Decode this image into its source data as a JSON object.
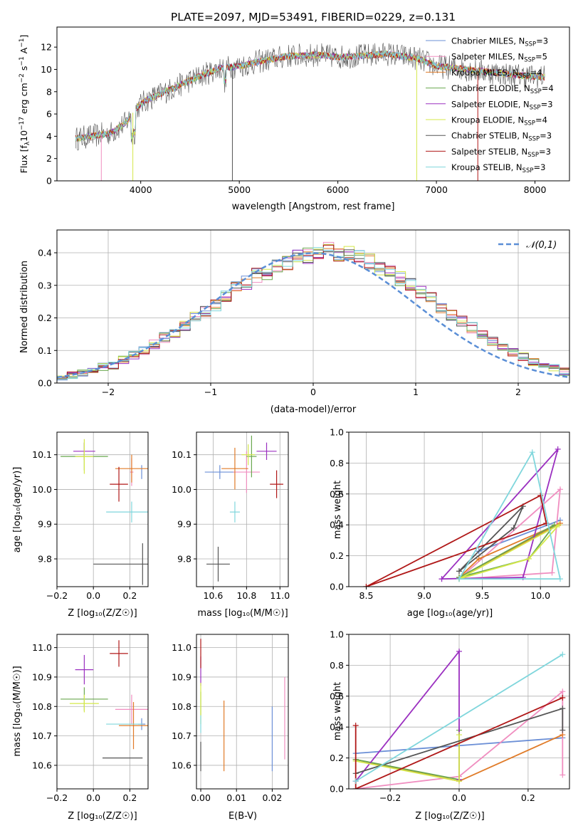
{
  "title": "PLATE=2097, MJD=53491, FIBERID=0229, z=0.131",
  "colors": {
    "Chabrier MILES": "#6b8fd6",
    "Salpeter MILES": "#f08ec0",
    "Kroupa MILES": "#e07b28",
    "Chabrier ELODIE": "#6aa84f",
    "Salpeter ELODIE": "#9b30c0",
    "Kroupa ELODIE": "#d4e84a",
    "Chabrier STELIB": "#555555",
    "Salpeter STELIB": "#b01818",
    "Kroupa STELIB": "#7fd6dc",
    "normal": "#5a8ed6"
  },
  "chart_data": [
    {
      "type": "line",
      "xlabel": "wavelength [Angstrom, rest frame]",
      "ylabel": "Flux [f_λ 10⁻¹⁷ erg cm⁻² s⁻¹ A⁻¹]",
      "xlim": [
        3150,
        8350
      ],
      "ylim": [
        0,
        13.8
      ],
      "xticks": [
        4000,
        5000,
        6000,
        7000,
        8000
      ],
      "yticks": [
        0,
        2,
        4,
        6,
        8,
        10,
        12
      ],
      "legend_loc": "right",
      "legend": [
        "Chabrier MILES, N_SSP=3",
        "Salpeter MILES, N_SSP=5",
        "Kroupa MILES, N_SSP=4",
        "Chabrier ELODIE, N_SSP=4",
        "Salpeter ELODIE, N_SSP=3",
        "Kroupa ELODIE, N_SSP=4",
        "Chabrier STELIB, N_SSP=3",
        "Salpeter STELIB, N_SSP=3",
        "Kroupa STELIB, N_SSP=3"
      ],
      "continuum": [
        [
          3350,
          3.8
        ],
        [
          3500,
          4.0
        ],
        [
          3700,
          4.3
        ],
        [
          3850,
          5.2
        ],
        [
          3950,
          6.5
        ],
        [
          4050,
          7.2
        ],
        [
          4200,
          7.8
        ],
        [
          4400,
          8.6
        ],
        [
          4600,
          9.4
        ],
        [
          4800,
          10.1
        ],
        [
          5000,
          10.3
        ],
        [
          5200,
          10.7
        ],
        [
          5500,
          11.2
        ],
        [
          5800,
          11.3
        ],
        [
          6000,
          11.1
        ],
        [
          6200,
          11.2
        ],
        [
          6500,
          11.4
        ],
        [
          6800,
          11.0
        ],
        [
          7000,
          10.3
        ],
        [
          7200,
          10.1
        ],
        [
          7500,
          9.8
        ],
        [
          7800,
          9.5
        ],
        [
          8100,
          9.3
        ]
      ],
      "spikes_down": [
        {
          "x": 3600,
          "y": 0.0
        },
        {
          "x": 3920,
          "y": 0.0
        },
        {
          "x": 4930,
          "y": 0.0
        },
        {
          "x": 6800,
          "y": 0.0
        },
        {
          "x": 7420,
          "y": 0.0
        }
      ]
    },
    {
      "type": "line",
      "xlabel": "(data-model)/error",
      "ylabel": "Normed distribution",
      "xlim": [
        -2.5,
        2.5
      ],
      "ylim": [
        0,
        0.47
      ],
      "xticks": [
        -2,
        -1,
        0,
        1,
        2
      ],
      "yticks": [
        0.0,
        0.1,
        0.2,
        0.3,
        0.4
      ],
      "legend_loc": "upper right",
      "legend": [
        "𝒩(0,1)"
      ],
      "bin_width": 0.1,
      "bin_start": -2.5,
      "base_hist": [
        0.02,
        0.025,
        0.03,
        0.04,
        0.05,
        0.055,
        0.07,
        0.085,
        0.1,
        0.12,
        0.14,
        0.155,
        0.175,
        0.2,
        0.22,
        0.24,
        0.265,
        0.29,
        0.31,
        0.33,
        0.34,
        0.355,
        0.37,
        0.385,
        0.39,
        0.4,
        0.41,
        0.4,
        0.395,
        0.39,
        0.375,
        0.355,
        0.34,
        0.32,
        0.3,
        0.28,
        0.26,
        0.235,
        0.21,
        0.19,
        0.17,
        0.15,
        0.13,
        0.11,
        0.095,
        0.08,
        0.065,
        0.055,
        0.045,
        0.035,
        0.03
      ]
    },
    {
      "type": "scatter",
      "xlabel": "Z [log₁₀(Z/Z☉)]",
      "ylabel": "age  [log₁₀(age/yr)]",
      "xlim": [
        -0.2,
        0.3
      ],
      "ylim": [
        9.72,
        10.165
      ],
      "xticks": [
        -0.2,
        0.0,
        0.2
      ],
      "yticks": [
        9.8,
        9.9,
        10.0,
        10.1
      ],
      "points": [
        {
          "model": "Chabrier MILES",
          "x": 0.265,
          "y": 10.05,
          "xerr": 0.0,
          "yerr": 0.02
        },
        {
          "model": "Salpeter MILES",
          "x": 0.21,
          "y": 10.05,
          "xerr": 0.01,
          "yerr": 0.04
        },
        {
          "model": "Kroupa MILES",
          "x": 0.21,
          "y": 10.06,
          "xerr": 0.09,
          "yerr": 0.04
        },
        {
          "model": "Chabrier ELODIE",
          "x": -0.05,
          "y": 10.095,
          "xerr": 0.13,
          "yerr": 0.04
        },
        {
          "model": "Salpeter ELODIE",
          "x": -0.05,
          "y": 10.11,
          "xerr": 0.06,
          "yerr": 0.025
        },
        {
          "model": "Kroupa ELODIE",
          "x": -0.05,
          "y": 10.095,
          "xerr": 0.05,
          "yerr": 0.05
        },
        {
          "model": "Chabrier STELIB",
          "x": 0.27,
          "y": 9.785,
          "xerr": 0.27,
          "yerr": 0.06
        },
        {
          "model": "Salpeter STELIB",
          "x": 0.14,
          "y": 10.015,
          "xerr": 0.05,
          "yerr": 0.05
        },
        {
          "model": "Kroupa STELIB",
          "x": 0.21,
          "y": 9.935,
          "xerr": 0.14,
          "yerr": 0.03
        }
      ]
    },
    {
      "type": "scatter",
      "xlabel": "mass [log₁₀(M/M☉)]",
      "ylabel": "",
      "xlim": [
        10.5,
        11.05
      ],
      "ylim": [
        9.72,
        10.165
      ],
      "xticks": [
        10.6,
        10.8,
        11.0
      ],
      "yticks": [
        9.8,
        9.9,
        10.0,
        10.1
      ],
      "points": [
        {
          "model": "Chabrier MILES",
          "x": 10.64,
          "y": 10.05,
          "xerr": 0.09,
          "yerr": 0.02
        },
        {
          "model": "Salpeter MILES",
          "x": 10.8,
          "y": 10.05,
          "xerr": 0.08,
          "yerr": 0.06
        },
        {
          "model": "Kroupa MILES",
          "x": 10.73,
          "y": 10.06,
          "xerr": 0.08,
          "yerr": 0.06
        },
        {
          "model": "Chabrier ELODIE",
          "x": 10.83,
          "y": 10.095,
          "xerr": 0.03,
          "yerr": 0.06
        },
        {
          "model": "Salpeter ELODIE",
          "x": 10.92,
          "y": 10.11,
          "xerr": 0.06,
          "yerr": 0.025
        },
        {
          "model": "Kroupa ELODIE",
          "x": 10.81,
          "y": 10.1,
          "xerr": 0.04,
          "yerr": 0.03
        },
        {
          "model": "Chabrier STELIB",
          "x": 10.63,
          "y": 9.785,
          "xerr": 0.07,
          "yerr": 0.05
        },
        {
          "model": "Salpeter STELIB",
          "x": 10.98,
          "y": 10.015,
          "xerr": 0.04,
          "yerr": 0.04
        },
        {
          "model": "Kroupa STELIB",
          "x": 10.73,
          "y": 9.935,
          "xerr": 0.03,
          "yerr": 0.03
        }
      ]
    },
    {
      "type": "line",
      "xlabel": "age  [log₁₀(age/yr)]",
      "ylabel": "mass weight",
      "xlim": [
        8.35,
        10.25
      ],
      "ylim": [
        0,
        1.0
      ],
      "xticks": [
        8.5,
        9.0,
        9.5,
        10.0
      ],
      "yticks": [
        0.0,
        0.2,
        0.4,
        0.6,
        0.8,
        1.0
      ],
      "series": [
        {
          "model": "Chabrier MILES",
          "x": [
            9.47,
            10.17,
            9.47
          ],
          "y": [
            0.23,
            0.43,
            0.23
          ]
        },
        {
          "model": "Salpeter MILES",
          "x": [
            9.3,
            10.17,
            10.1,
            9.3
          ],
          "y": [
            0.05,
            0.63,
            0.09,
            0.05
          ]
        },
        {
          "model": "Kroupa MILES",
          "x": [
            9.3,
            9.47,
            10.17,
            9.3
          ],
          "y": [
            0.06,
            0.18,
            0.41,
            0.06
          ]
        },
        {
          "model": "Chabrier ELODIE",
          "x": [
            9.3,
            10.12,
            9.9,
            9.3
          ],
          "y": [
            0.06,
            0.4,
            0.18,
            0.06
          ]
        },
        {
          "model": "Salpeter ELODIE",
          "x": [
            9.15,
            9.85,
            10.15,
            9.15
          ],
          "y": [
            0.05,
            0.06,
            0.89,
            0.05
          ]
        },
        {
          "model": "Kroupa ELODIE",
          "x": [
            9.3,
            10.16,
            9.9,
            9.3
          ],
          "y": [
            0.05,
            0.4,
            0.18,
            0.05
          ]
        },
        {
          "model": "Chabrier STELIB",
          "x": [
            9.3,
            9.77,
            9.85,
            9.3
          ],
          "y": [
            0.1,
            0.38,
            0.52,
            0.1
          ]
        },
        {
          "model": "Salpeter STELIB",
          "x": [
            8.5,
            10.0,
            10.05,
            8.5
          ],
          "y": [
            0.0,
            0.59,
            0.41,
            0.0
          ]
        },
        {
          "model": "Kroupa STELIB",
          "x": [
            9.3,
            9.93,
            10.17,
            9.3
          ],
          "y": [
            0.05,
            0.87,
            0.05,
            0.05
          ]
        }
      ]
    },
    {
      "type": "scatter",
      "xlabel": "Z [log₁₀(Z/Z☉)]",
      "ylabel": "mass [log₁₀(M/M☉)]",
      "xlim": [
        -0.2,
        0.3
      ],
      "ylim": [
        10.52,
        11.045
      ],
      "xticks": [
        -0.2,
        0.0,
        0.2
      ],
      "yticks": [
        10.6,
        10.7,
        10.8,
        10.9,
        11.0
      ],
      "points": [
        {
          "model": "Chabrier MILES",
          "x": 0.265,
          "y": 10.74,
          "xerr": 0.02,
          "yerr": 0.02
        },
        {
          "model": "Salpeter MILES",
          "x": 0.21,
          "y": 10.79,
          "xerr": 0.09,
          "yerr": 0.05
        },
        {
          "model": "Kroupa MILES",
          "x": 0.22,
          "y": 10.735,
          "xerr": 0.08,
          "yerr": 0.08
        },
        {
          "model": "Chabrier ELODIE",
          "x": -0.05,
          "y": 10.825,
          "xerr": 0.13,
          "yerr": 0.04
        },
        {
          "model": "Salpeter ELODIE",
          "x": -0.05,
          "y": 10.925,
          "xerr": 0.05,
          "yerr": 0.05
        },
        {
          "model": "Kroupa ELODIE",
          "x": -0.05,
          "y": 10.81,
          "xerr": 0.08,
          "yerr": 0.03
        },
        {
          "model": "Chabrier STELIB",
          "x": 0.16,
          "y": 10.625,
          "xerr": 0.11,
          "yerr": 0.0
        },
        {
          "model": "Salpeter STELIB",
          "x": 0.14,
          "y": 10.98,
          "xerr": 0.05,
          "yerr": 0.045
        },
        {
          "model": "Kroupa STELIB",
          "x": 0.17,
          "y": 10.74,
          "xerr": 0.1,
          "yerr": 0.0
        }
      ]
    },
    {
      "type": "scatter",
      "xlabel": "E(B-V)",
      "ylabel": "",
      "xlim": [
        -0.0012,
        0.0245
      ],
      "ylim": [
        10.52,
        11.045
      ],
      "xticks": [
        0.0,
        0.01,
        0.02
      ],
      "yticks": [
        10.6,
        10.7,
        10.8,
        10.9,
        11.0
      ],
      "points": [
        {
          "model": "Chabrier MILES",
          "x": 0.02,
          "y": 10.69,
          "xerr": 0.0,
          "yerr": 0.11
        },
        {
          "model": "Salpeter MILES",
          "x": 0.0235,
          "y": 10.76,
          "xerr": 0.0,
          "yerr": 0.14
        },
        {
          "model": "Kroupa MILES",
          "x": 0.0065,
          "y": 10.7,
          "xerr": 0.0,
          "yerr": 0.12
        },
        {
          "model": "Chabrier ELODIE",
          "x": 0.0,
          "y": 10.81,
          "xerr": 0.0,
          "yerr": 0.04
        },
        {
          "model": "Salpeter ELODIE",
          "x": 0.0,
          "y": 10.92,
          "xerr": 0.0,
          "yerr": 0.05
        },
        {
          "model": "Kroupa ELODIE",
          "x": 0.0,
          "y": 10.81,
          "xerr": 0.0,
          "yerr": 0.07
        },
        {
          "model": "Chabrier STELIB",
          "x": 0.0,
          "y": 10.63,
          "xerr": 0.0,
          "yerr": 0.05
        },
        {
          "model": "Salpeter STELIB",
          "x": 0.0,
          "y": 10.98,
          "xerr": 0.0,
          "yerr": 0.05
        },
        {
          "model": "Kroupa STELIB",
          "x": 0.0,
          "y": 10.74,
          "xerr": 0.0,
          "yerr": 0.03
        }
      ]
    },
    {
      "type": "line",
      "xlabel": "Z [log₁₀(Z/Z☉)]",
      "ylabel": "mass weight",
      "xlim": [
        -0.32,
        0.32
      ],
      "ylim": [
        0,
        1.0
      ],
      "xticks": [
        -0.2,
        0.0,
        0.2
      ],
      "yticks": [
        0.0,
        0.2,
        0.4,
        0.6,
        0.8,
        1.0
      ],
      "series": [
        {
          "model": "Chabrier MILES",
          "x": [
            -0.3,
            0.3
          ],
          "y": [
            0.23,
            0.33
          ]
        },
        {
          "model": "Salpeter MILES",
          "x": [
            -0.3,
            0.0,
            0.3,
            0.3
          ],
          "y": [
            0.0,
            0.08,
            0.63,
            0.09
          ]
        },
        {
          "model": "Kroupa MILES",
          "x": [
            -0.3,
            0.0,
            0.3
          ],
          "y": [
            0.19,
            0.05,
            0.35
          ]
        },
        {
          "model": "Chabrier ELODIE",
          "x": [
            -0.3,
            0.0,
            0.0
          ],
          "y": [
            0.19,
            0.06,
            0.38
          ]
        },
        {
          "model": "Salpeter ELODIE",
          "x": [
            -0.3,
            0.0,
            0.0
          ],
          "y": [
            0.05,
            0.89,
            0.06
          ]
        },
        {
          "model": "Kroupa ELODIE",
          "x": [
            -0.3,
            0.0,
            0.0
          ],
          "y": [
            0.18,
            0.05,
            0.35
          ]
        },
        {
          "model": "Chabrier STELIB",
          "x": [
            -0.3,
            0.3,
            0.3
          ],
          "y": [
            0.1,
            0.52,
            0.38
          ]
        },
        {
          "model": "Salpeter STELIB",
          "x": [
            -0.3,
            -0.3,
            0.3
          ],
          "y": [
            0.41,
            0.0,
            0.59
          ]
        },
        {
          "model": "Kroupa STELIB",
          "x": [
            -0.3,
            0.3
          ],
          "y": [
            0.05,
            0.87
          ]
        }
      ]
    }
  ]
}
